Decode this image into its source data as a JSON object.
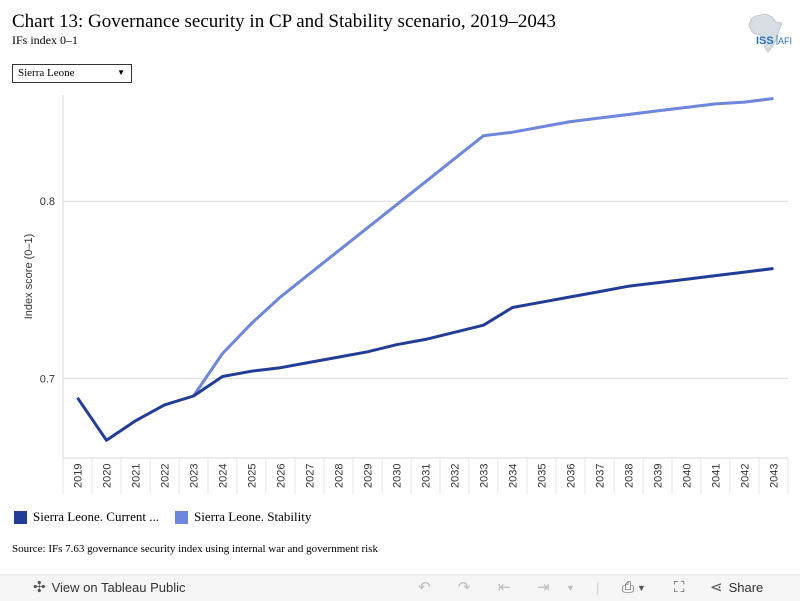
{
  "title": "Chart 13: Governance security in CP and Stability scenario, 2019–2043",
  "subtitle": "IFs index 0–1",
  "logo": {
    "text": "ISS",
    "suffix": "AFI"
  },
  "filter": {
    "selected": "Sierra Leone"
  },
  "source": "Source: IFs 7.63 governance security index using internal war and government risk",
  "toolbar": {
    "view_label": "View on Tableau Public",
    "share_label": "Share"
  },
  "chart_data": {
    "type": "line",
    "title": "Chart 13: Governance security in CP and Stability scenario, 2019–2043",
    "subtitle": "IFs index 0–1",
    "xlabel": "",
    "ylabel": "Index score (0–1)",
    "ylim": [
      0.655,
      0.86
    ],
    "yticks": [
      0.7,
      0.8
    ],
    "grid": true,
    "legend_position": "bottom-left",
    "x": [
      "2019",
      "2020",
      "2021",
      "2022",
      "2023",
      "2024",
      "2025",
      "2026",
      "2027",
      "2028",
      "2029",
      "2030",
      "2031",
      "2032",
      "2033",
      "2034",
      "2035",
      "2036",
      "2037",
      "2038",
      "2039",
      "2040",
      "2041",
      "2042",
      "2043"
    ],
    "series": [
      {
        "name": "Sierra Leone. Current ...",
        "color": "#233d96",
        "values": [
          0.689,
          0.665,
          0.676,
          0.685,
          0.69,
          0.701,
          0.704,
          0.706,
          0.709,
          0.712,
          0.715,
          0.719,
          0.722,
          0.726,
          0.73,
          0.74,
          0.743,
          0.746,
          0.749,
          0.752,
          0.754,
          0.756,
          0.758,
          0.76,
          0.762
        ]
      },
      {
        "name": "Sierra Leone. Stability",
        "color": "#6e86db",
        "values": [
          null,
          null,
          null,
          null,
          0.69,
          0.714,
          0.731,
          0.746,
          0.759,
          0.772,
          0.785,
          0.798,
          0.811,
          0.824,
          0.837,
          0.839,
          0.842,
          0.845,
          0.847,
          0.849,
          0.851,
          0.853,
          0.855,
          0.856,
          0.858
        ]
      }
    ]
  }
}
